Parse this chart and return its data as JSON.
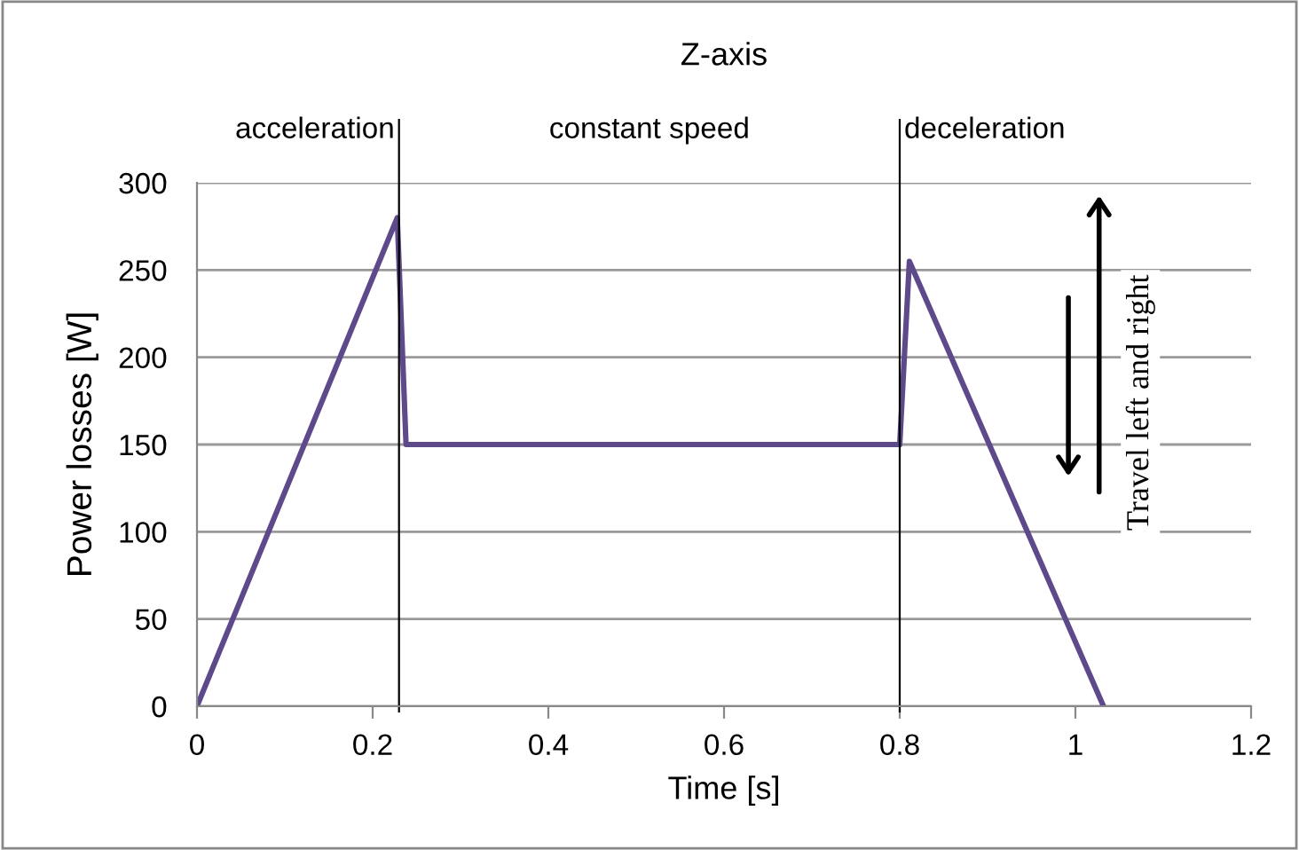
{
  "chart_data": {
    "type": "line",
    "title": "Z-axis",
    "xlabel": "Time [s]",
    "ylabel": "Power losses [W]",
    "x": [
      0,
      0.228,
      0.238,
      0.8,
      0.811,
      1.032
    ],
    "series": [
      {
        "color": "#5e4a8b",
        "values": [
          0,
          280,
          150,
          150,
          255,
          0
        ]
      }
    ],
    "xlim": [
      0,
      1.2
    ],
    "xticks": [
      0,
      0.2,
      0.4,
      0.6,
      0.8,
      1,
      1.2
    ],
    "ylim": [
      0,
      300
    ],
    "yticks": [
      0,
      50,
      100,
      150,
      200,
      250,
      300
    ],
    "grid": "y",
    "ref_lines": [
      {
        "axis": "x",
        "value": 0.23,
        "label": "acceleration",
        "color": "#000000"
      },
      {
        "axis": "x",
        "value": 0.8,
        "label": "deceleration",
        "color": "#000000"
      }
    ],
    "annotations": [
      "constant speed",
      "Travel left and right"
    ]
  }
}
